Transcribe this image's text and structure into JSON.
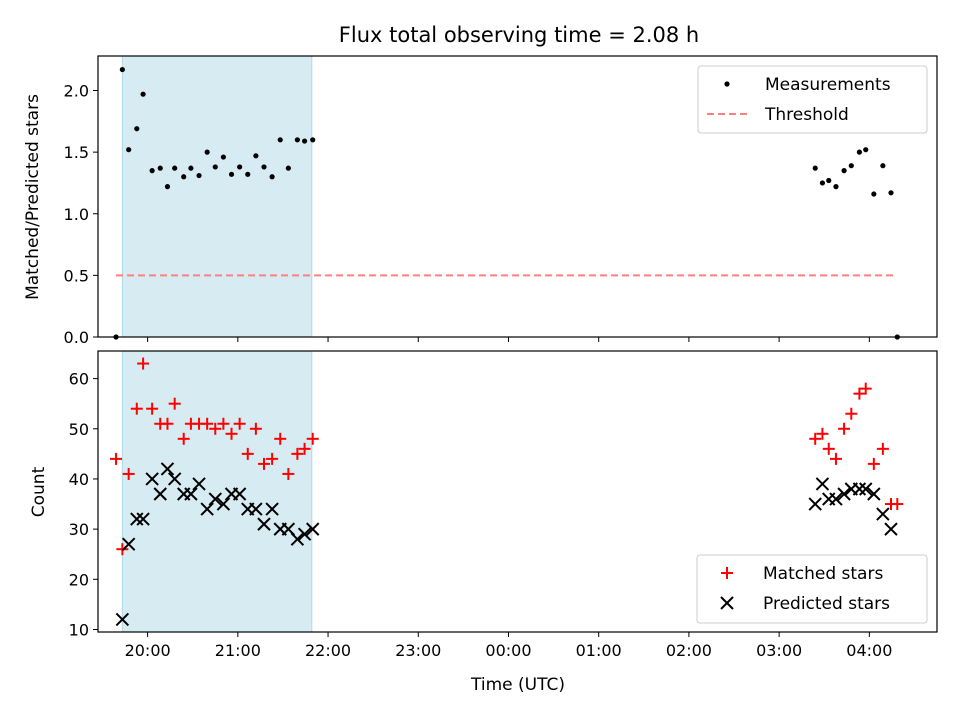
{
  "chart_data": [
    {
      "type": "scatter",
      "title": "Flux total observing time = 2.08 h",
      "xlabel": "",
      "ylabel": "Matched/Predicted stars",
      "x_unit": "hours since 20:00 UTC",
      "ylim": [
        0,
        2.28
      ],
      "yticks": [
        0.0,
        0.5,
        1.0,
        1.5,
        2.0
      ],
      "ytick_labels": [
        "0.0",
        "0.5",
        "1.0",
        "1.5",
        "2.0"
      ],
      "shaded_span": [
        -0.28,
        1.82
      ],
      "legend": {
        "position": "top-right",
        "entries": [
          {
            "label": "Measurements"
          },
          {
            "label": "Threshold"
          }
        ]
      },
      "series": [
        {
          "name": "Measurements",
          "marker": "dot",
          "color": "#000000",
          "x": [
            -0.35,
            -0.28,
            -0.21,
            -0.12,
            -0.05,
            0.05,
            0.14,
            0.22,
            0.3,
            0.4,
            0.48,
            0.57,
            0.66,
            0.75,
            0.84,
            0.93,
            1.02,
            1.11,
            1.2,
            1.29,
            1.38,
            1.47,
            1.56,
            1.66,
            1.74,
            1.83,
            7.4,
            7.48,
            7.55,
            7.63,
            7.72,
            7.8,
            7.89,
            7.96,
            8.05,
            8.15,
            8.24,
            8.31
          ],
          "y": [
            0.0,
            2.17,
            1.52,
            1.69,
            1.97,
            1.35,
            1.37,
            1.22,
            1.37,
            1.3,
            1.37,
            1.31,
            1.5,
            1.38,
            1.46,
            1.32,
            1.38,
            1.32,
            1.47,
            1.38,
            1.3,
            1.6,
            1.37,
            1.6,
            1.59,
            1.6,
            1.37,
            1.25,
            1.27,
            1.22,
            1.35,
            1.39,
            1.5,
            1.52,
            1.16,
            1.39,
            1.17,
            0.0
          ]
        },
        {
          "name": "Threshold",
          "type": "line",
          "style": "dashed",
          "color": "#ff7f7f",
          "x": [
            -0.35,
            8.27
          ],
          "y": [
            0.5,
            0.5
          ]
        }
      ]
    },
    {
      "type": "scatter",
      "title": "",
      "xlabel": "Time (UTC)",
      "ylabel": "Count",
      "x_unit": "hours since 20:00 UTC",
      "ylim": [
        9.5,
        65.5
      ],
      "yticks": [
        10,
        20,
        30,
        40,
        50,
        60
      ],
      "xticks": [
        0,
        1,
        2,
        3,
        4,
        5,
        6,
        7,
        8
      ],
      "xtick_labels": [
        "20:00",
        "21:00",
        "22:00",
        "23:00",
        "00:00",
        "01:00",
        "02:00",
        "03:00",
        "04:00"
      ],
      "shaded_span": [
        -0.28,
        1.82
      ],
      "legend": {
        "position": "bottom-right",
        "entries": [
          {
            "label": "Matched stars"
          },
          {
            "label": "Predicted stars"
          }
        ]
      },
      "series": [
        {
          "name": "Matched stars",
          "marker": "plus",
          "color": "#ff0000",
          "x": [
            -0.35,
            -0.28,
            -0.21,
            -0.12,
            -0.05,
            0.05,
            0.14,
            0.22,
            0.3,
            0.4,
            0.48,
            0.57,
            0.66,
            0.75,
            0.84,
            0.93,
            1.02,
            1.11,
            1.2,
            1.29,
            1.38,
            1.47,
            1.56,
            1.66,
            1.74,
            1.83,
            7.4,
            7.48,
            7.55,
            7.63,
            7.72,
            7.8,
            7.89,
            7.96,
            8.05,
            8.15,
            8.24,
            8.31
          ],
          "y": [
            44,
            26,
            41,
            54,
            63,
            54,
            51,
            51,
            55,
            48,
            51,
            51,
            51,
            50,
            51,
            49,
            51,
            45,
            50,
            43,
            44,
            48,
            41,
            45,
            46,
            48,
            48,
            49,
            46,
            44,
            50,
            53,
            57,
            58,
            43,
            46,
            35,
            35
          ]
        },
        {
          "name": "Predicted stars",
          "marker": "x",
          "color": "#000000",
          "x": [
            -0.28,
            -0.21,
            -0.12,
            -0.05,
            0.05,
            0.14,
            0.22,
            0.3,
            0.4,
            0.48,
            0.57,
            0.66,
            0.75,
            0.84,
            0.93,
            1.02,
            1.11,
            1.2,
            1.29,
            1.38,
            1.47,
            1.56,
            1.66,
            1.74,
            1.83,
            7.4,
            7.48,
            7.55,
            7.63,
            7.72,
            7.8,
            7.89,
            7.96,
            8.05,
            8.15,
            8.24
          ],
          "y": [
            12,
            27,
            32,
            32,
            40,
            37,
            42,
            40,
            37,
            37,
            39,
            34,
            36,
            35,
            37,
            37,
            34,
            34,
            31,
            34,
            30,
            30,
            28,
            29,
            30,
            35,
            39,
            36,
            36,
            37,
            38,
            38,
            38,
            37,
            33,
            30
          ]
        }
      ]
    }
  ]
}
